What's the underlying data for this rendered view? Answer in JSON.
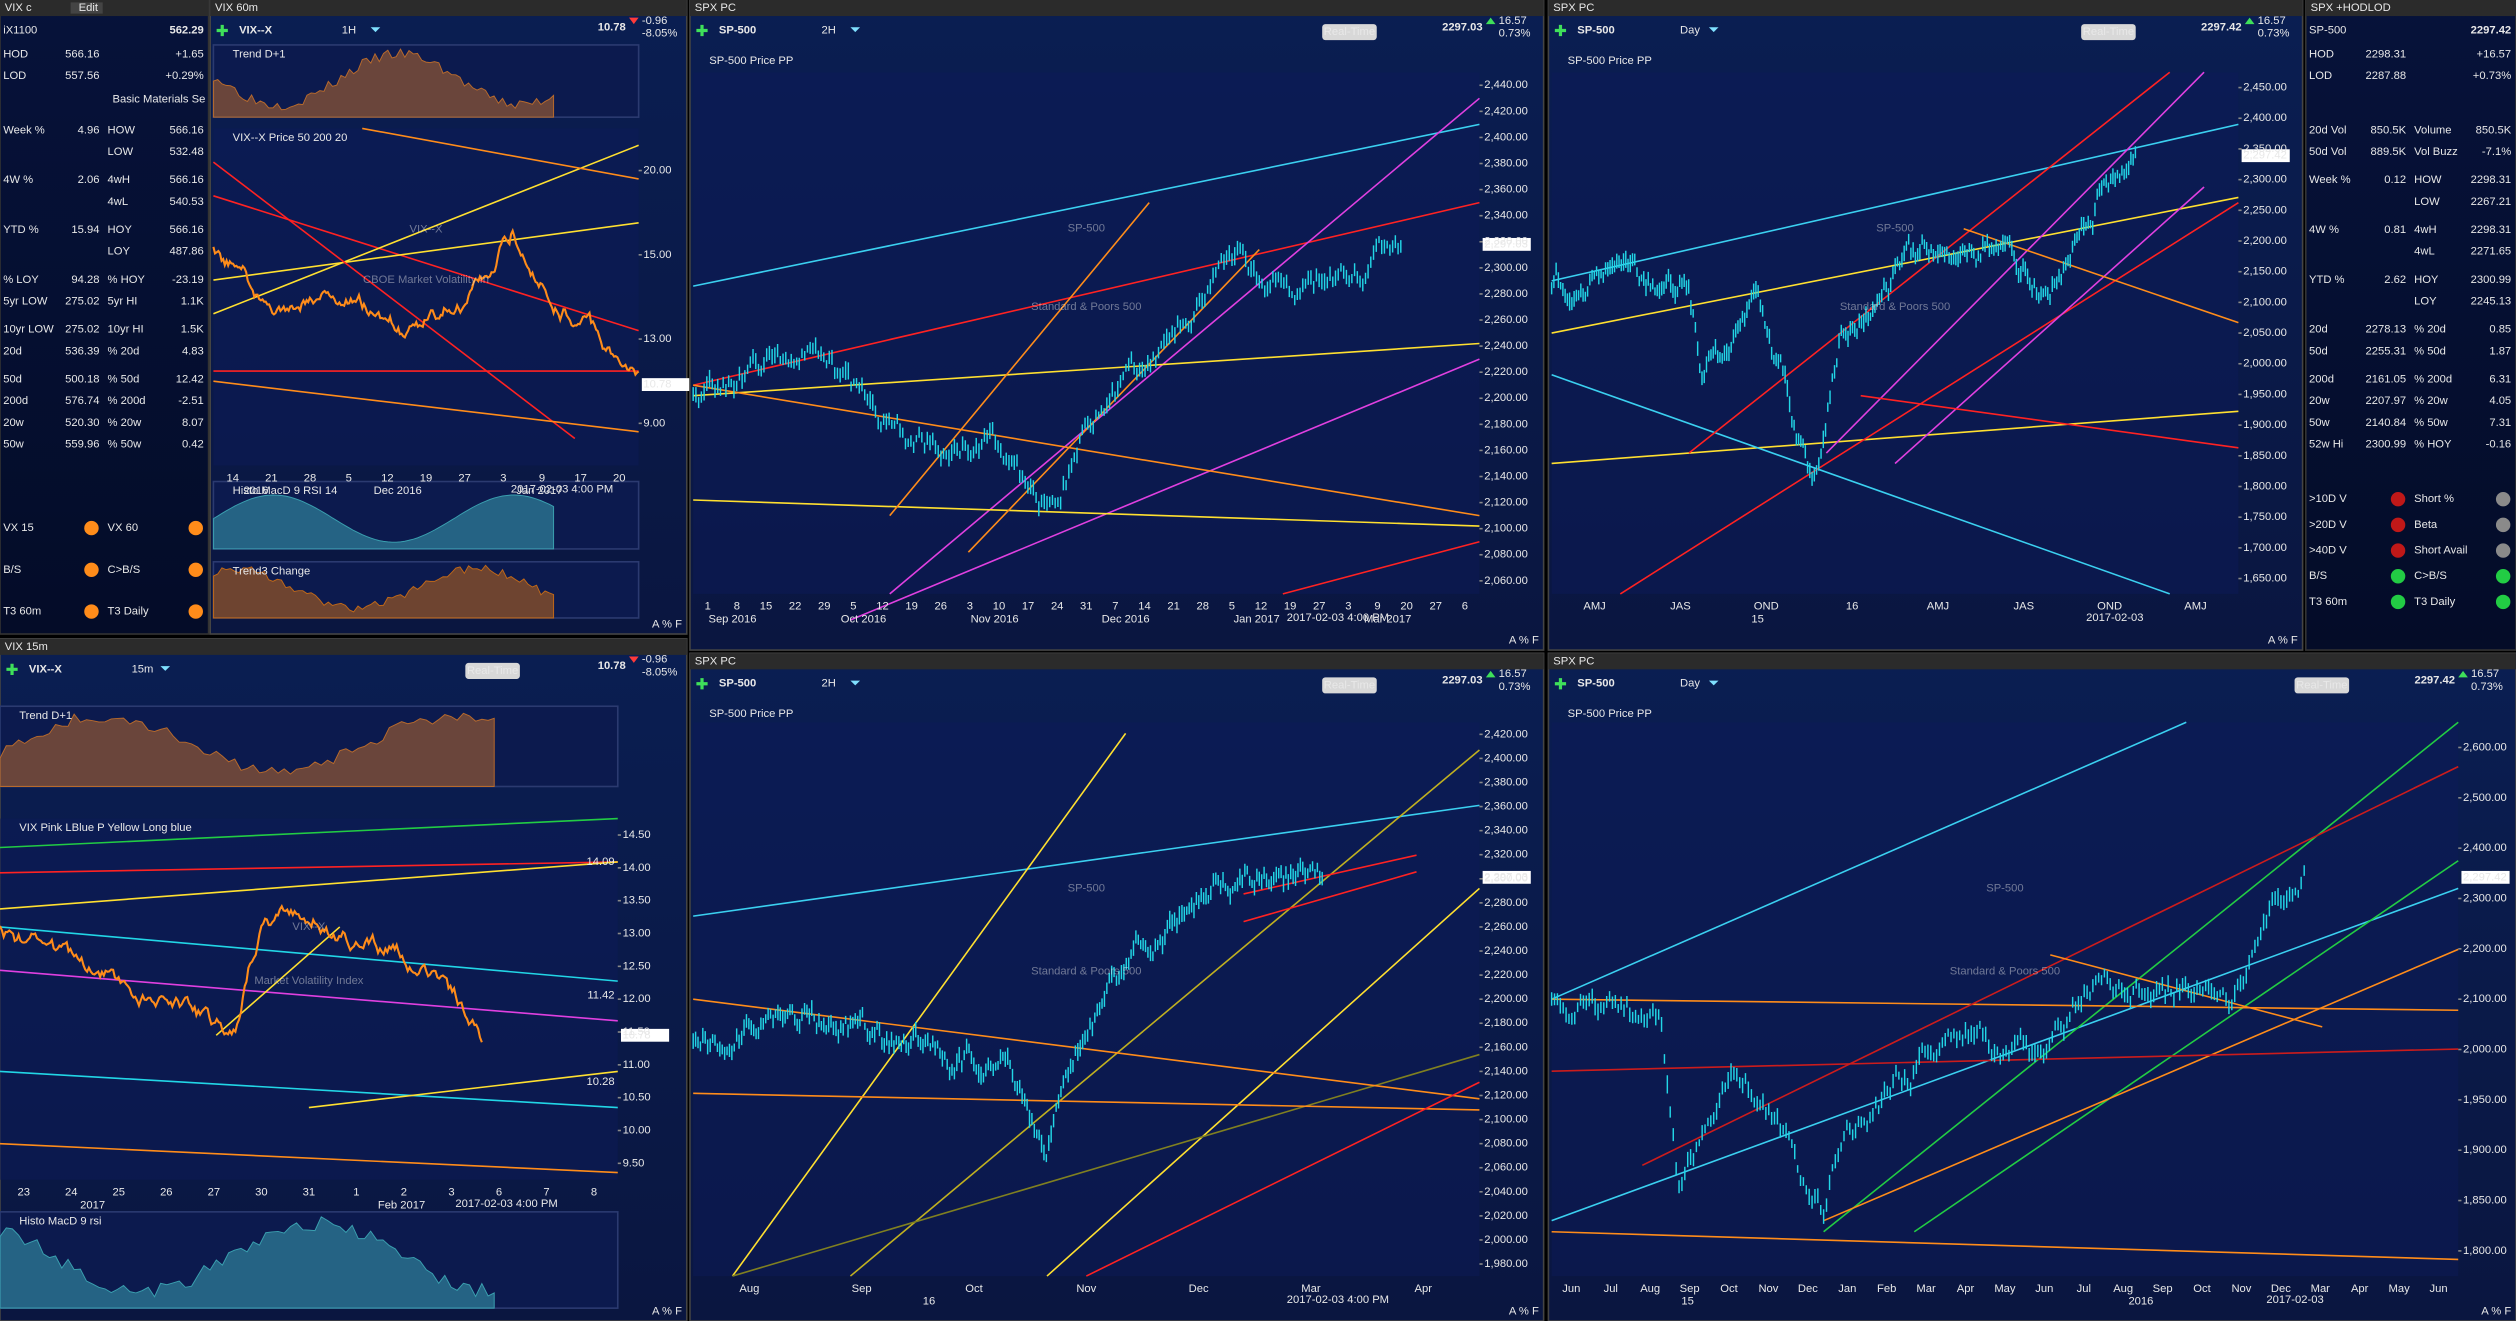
{
  "left_quote": {
    "window": "VIX c",
    "edit": "Edit",
    "symbol": "iX1100",
    "price": "562.29",
    "sector": "Basic Materials Se",
    "rows": [
      {
        "left": [
          "HOD",
          "566.16"
        ],
        "right": [
          "+1.65"
        ]
      },
      {
        "left": [
          "LOD",
          "557.56"
        ],
        "right": [
          "+0.29%"
        ]
      },
      {
        "left": [
          "Week %",
          "4.96"
        ],
        "right": [
          "HOW",
          "566.16"
        ]
      },
      {
        "right": [
          "LOW",
          "532.48"
        ]
      },
      {
        "left": [
          "4W %",
          "2.06"
        ],
        "right": [
          "4wH",
          "566.16"
        ]
      },
      {
        "right": [
          "4wL",
          "540.53"
        ]
      },
      {
        "left": [
          "YTD %",
          "15.94"
        ],
        "right": [
          "HOY",
          "566.16"
        ]
      },
      {
        "right": [
          "LOY",
          "487.86"
        ]
      },
      {
        "left": [
          "% LOY",
          "94.28"
        ],
        "right": [
          "% HOY",
          "-23.19"
        ]
      },
      {
        "left": [
          "5yr LOW",
          "275.02"
        ],
        "right": [
          "5yr HI",
          "1.1K"
        ]
      },
      {
        "left": [
          "10yr LOW",
          "275.02"
        ],
        "right": [
          "10yr HI",
          "1.5K"
        ]
      },
      {
        "left": [
          "20d",
          "536.39"
        ],
        "right": [
          "% 20d",
          "4.83"
        ]
      },
      {
        "left": [
          "50d",
          "500.18"
        ],
        "right": [
          "% 50d",
          "12.42"
        ]
      },
      {
        "left": [
          "200d",
          "576.74"
        ],
        "right": [
          "% 200d",
          "-2.51"
        ]
      },
      {
        "left": [
          "20w",
          "520.30"
        ],
        "right": [
          "% 20w",
          "8.07"
        ]
      },
      {
        "left": [
          "50w",
          "559.96"
        ],
        "right": [
          "% 50w",
          "0.42"
        ]
      }
    ],
    "signals": [
      [
        "VX 15",
        "VX 60"
      ],
      [
        "B/S",
        "C>B/S"
      ],
      [
        "T3 60m",
        "T3 Daily"
      ]
    ]
  },
  "right_quote": {
    "window": "SPX +HODLOD",
    "symbol": "SP-500",
    "price": "2297.42",
    "rows": [
      {
        "left": [
          "HOD",
          "2298.31"
        ],
        "right": [
          "+16.57"
        ]
      },
      {
        "left": [
          "LOD",
          "2287.88"
        ],
        "right": [
          "+0.73%"
        ]
      },
      {
        "left": [
          "20d Vol",
          "850.5K"
        ],
        "right": [
          "Volume",
          "850.5K"
        ]
      },
      {
        "left": [
          "50d Vol",
          "889.5K"
        ],
        "right": [
          "Vol Buzz",
          "-7.1%"
        ]
      },
      {
        "left": [
          "Week %",
          "0.12"
        ],
        "right": [
          "HOW",
          "2298.31"
        ]
      },
      {
        "right": [
          "LOW",
          "2267.21"
        ]
      },
      {
        "left": [
          "4W %",
          "0.81"
        ],
        "right": [
          "4wH",
          "2298.31"
        ]
      },
      {
        "right": [
          "4wL",
          "2271.65"
        ]
      },
      {
        "left": [
          "YTD %",
          "2.62"
        ],
        "right": [
          "HOY",
          "2300.99"
        ]
      },
      {
        "right": [
          "LOY",
          "2245.13"
        ]
      },
      {
        "left": [
          "20d",
          "2278.13"
        ],
        "right": [
          "% 20d",
          "0.85"
        ]
      },
      {
        "left": [
          "50d",
          "2255.31"
        ],
        "right": [
          "% 50d",
          "1.87"
        ]
      },
      {
        "left": [
          "200d",
          "2161.05"
        ],
        "right": [
          "% 200d",
          "6.31"
        ]
      },
      {
        "left": [
          "20w",
          "2207.97"
        ],
        "right": [
          "% 20w",
          "4.05"
        ]
      },
      {
        "left": [
          "50w",
          "2140.84"
        ],
        "right": [
          "% 50w",
          "7.31"
        ]
      },
      {
        "left": [
          "52w Hi",
          "2300.99"
        ],
        "right": [
          "% HOY",
          "-0.16"
        ]
      }
    ],
    "signals": [
      [
        ">10D V",
        "Short %"
      ],
      [
        ">20D V",
        "Beta"
      ],
      [
        ">40D V",
        "Short Avail"
      ],
      [
        "B/S",
        "C>B/S"
      ],
      [
        "T3 60m",
        "T3 Daily"
      ]
    ]
  },
  "panels": [
    {
      "window": "VIX 60m",
      "symbol": "VIX--X",
      "interval": "1H",
      "price": "10.78",
      "change": "-0.96",
      "pct": "-8.05%",
      "last_tag": "10.78",
      "yticks": [
        "20.00",
        "15.00",
        "13.00",
        "9.00"
      ],
      "xticks": [
        "14",
        "21",
        "28",
        "5",
        "12",
        "19",
        "27",
        "3",
        "9",
        "17",
        "20"
      ],
      "xyears": [
        "2016",
        "Dec 2016",
        "Jan 2017"
      ],
      "stamp": "2017-02-03 4:00 PM",
      "tools": "A % F",
      "watermark": [
        "VIX--X",
        "CBOE Market Volatility In"
      ],
      "indicators": [
        "Trend D+1",
        "VIX--X Price  50  200  20",
        "Histo  MacD 9  RSI 14",
        "Trend3  Change"
      ]
    },
    {
      "window": "SPX PC",
      "symbol": "SP-500",
      "interval": "2H",
      "price": "2297.03",
      "change": "16.57",
      "pct": "0.73%",
      "realtime": "Real-Time",
      "last_tag": "2,297.03",
      "yticks": [
        "2,440.00",
        "2,420.00",
        "2,400.00",
        "2,380.00",
        "2,360.00",
        "2,340.00",
        "2,320.00",
        "2,300.00",
        "2,280.00",
        "2,260.00",
        "2,240.00",
        "2,220.00",
        "2,200.00",
        "2,180.00",
        "2,160.00",
        "2,140.00",
        "2,120.00",
        "2,100.00",
        "2,080.00",
        "2,060.00"
      ],
      "xticks": [
        "1",
        "8",
        "15",
        "22",
        "29",
        "5",
        "12",
        "19",
        "26",
        "3",
        "10",
        "17",
        "24",
        "31",
        "7",
        "14",
        "21",
        "28",
        "5",
        "12",
        "19",
        "27",
        "3",
        "9",
        "20",
        "27",
        "6"
      ],
      "xyears": [
        "Sep 2016",
        "Oct 2016",
        "Nov 2016",
        "Dec 2016",
        "Jan 2017",
        "Mar 2017"
      ],
      "stamp": "2017-02-03 4:00 PM",
      "tools": "A % F",
      "watermark": [
        "SP-500",
        "Standard & Poors 500"
      ],
      "indicators": [
        "SP-500 Price  PP"
      ]
    },
    {
      "window": "SPX PC",
      "symbol": "SP-500",
      "interval": "Day",
      "price": "2297.42",
      "change": "16.57",
      "pct": "0.73%",
      "realtime": "Real-Time",
      "last_tag": "2,297.42",
      "yticks": [
        "2,450.00",
        "2,400.00",
        "2,350.00",
        "2,300.00",
        "2,250.00",
        "2,200.00",
        "2,150.00",
        "2,100.00",
        "2,050.00",
        "2,000.00",
        "1,950.00",
        "1,900.00",
        "1,850.00",
        "1,800.00",
        "1,750.00",
        "1,700.00",
        "1,650.00"
      ],
      "xticks": [
        "AMJ",
        "JAS",
        "OND",
        "16",
        "AMJ",
        "JAS",
        "OND",
        "AMJ"
      ],
      "xyears": [
        "15"
      ],
      "stamp": "2017-02-03",
      "tools": "A % F",
      "watermark": [
        "SP-500",
        "Standard & Poors 500"
      ],
      "indicators": [
        "SP-500 Price  PP"
      ]
    },
    {
      "window": "VIX 15m",
      "symbol": "VIX--X",
      "interval": "15m",
      "price": "10.78",
      "change": "-0.96",
      "pct": "-8.05%",
      "realtime": "Real-Time",
      "last_tag": "10.78",
      "yticks": [
        "14.50",
        "14.00",
        "13.50",
        "13.00",
        "12.50",
        "12.00",
        "11.50",
        "11.00",
        "10.50",
        "10.00",
        "9.50"
      ],
      "levels": [
        "14.09",
        "11.42",
        "10.28"
      ],
      "xticks": [
        "23",
        "24",
        "25",
        "26",
        "27",
        "30",
        "31",
        "1",
        "2",
        "3",
        "6",
        "7",
        "8"
      ],
      "xyears": [
        "2017",
        "Feb 2017"
      ],
      "stamp": "2017-02-03 4:00 PM",
      "tools": "A % F",
      "watermark": [
        "VIX--X",
        "Market Volatility Index"
      ],
      "indicators": [
        "Trend  D+1",
        "VIX  Pink  LBlue  P  Yellow  Long blue",
        "Histo  MacD  9  rsi"
      ]
    },
    {
      "window": "SPX PC",
      "symbol": "SP-500",
      "interval": "2H",
      "price": "2297.03",
      "change": "16.57",
      "pct": "0.73%",
      "realtime": "Real-Time",
      "last_tag": "2,297.03",
      "yticks": [
        "2,420.00",
        "2,400.00",
        "2,380.00",
        "2,360.00",
        "2,340.00",
        "2,320.00",
        "2,300.00",
        "2,280.00",
        "2,260.00",
        "2,240.00",
        "2,220.00",
        "2,200.00",
        "2,180.00",
        "2,160.00",
        "2,140.00",
        "2,120.00",
        "2,100.00",
        "2,080.00",
        "2,060.00",
        "2,040.00",
        "2,020.00",
        "2,000.00",
        "1,980.00"
      ],
      "xticks": [
        "Aug",
        "Sep",
        "Oct",
        "Nov",
        "Dec",
        "Mar",
        "Apr"
      ],
      "xyears": [
        "16"
      ],
      "stamp": "2017-02-03 4:00 PM",
      "tools": "A % F",
      "watermark": [
        "SP-500",
        "Standard & Poors 500"
      ],
      "indicators": [
        "SP-500 Price  PP"
      ]
    },
    {
      "window": "SPX PC",
      "symbol": "SP-500",
      "interval": "Day",
      "price": "2297.42",
      "change": "16.57",
      "pct": "0.73%",
      "realtime": "Real-Time",
      "last_tag": "2,297.42",
      "yticks": [
        "2,600.00",
        "2,500.00",
        "2,400.00",
        "2,300.00",
        "2,200.00",
        "2,100.00",
        "2,000.00",
        "1,950.00",
        "1,900.00",
        "1,850.00",
        "1,800.00"
      ],
      "xticks": [
        "Jun",
        "Jul",
        "Aug",
        "Sep",
        "Oct",
        "Nov",
        "Dec",
        "Jan",
        "Feb",
        "Mar",
        "Apr",
        "May",
        "Jun",
        "Jul",
        "Aug",
        "Sep",
        "Oct",
        "Nov",
        "Dec",
        "Mar",
        "Apr",
        "May",
        "Jun"
      ],
      "xyears": [
        "15",
        "2016"
      ],
      "stamp": "2017-02-03",
      "tools": "A % F",
      "watermark": [
        "SP-500",
        "Standard & Poors 500"
      ],
      "indicators": [
        "SP-500 Price  PP"
      ]
    }
  ]
}
